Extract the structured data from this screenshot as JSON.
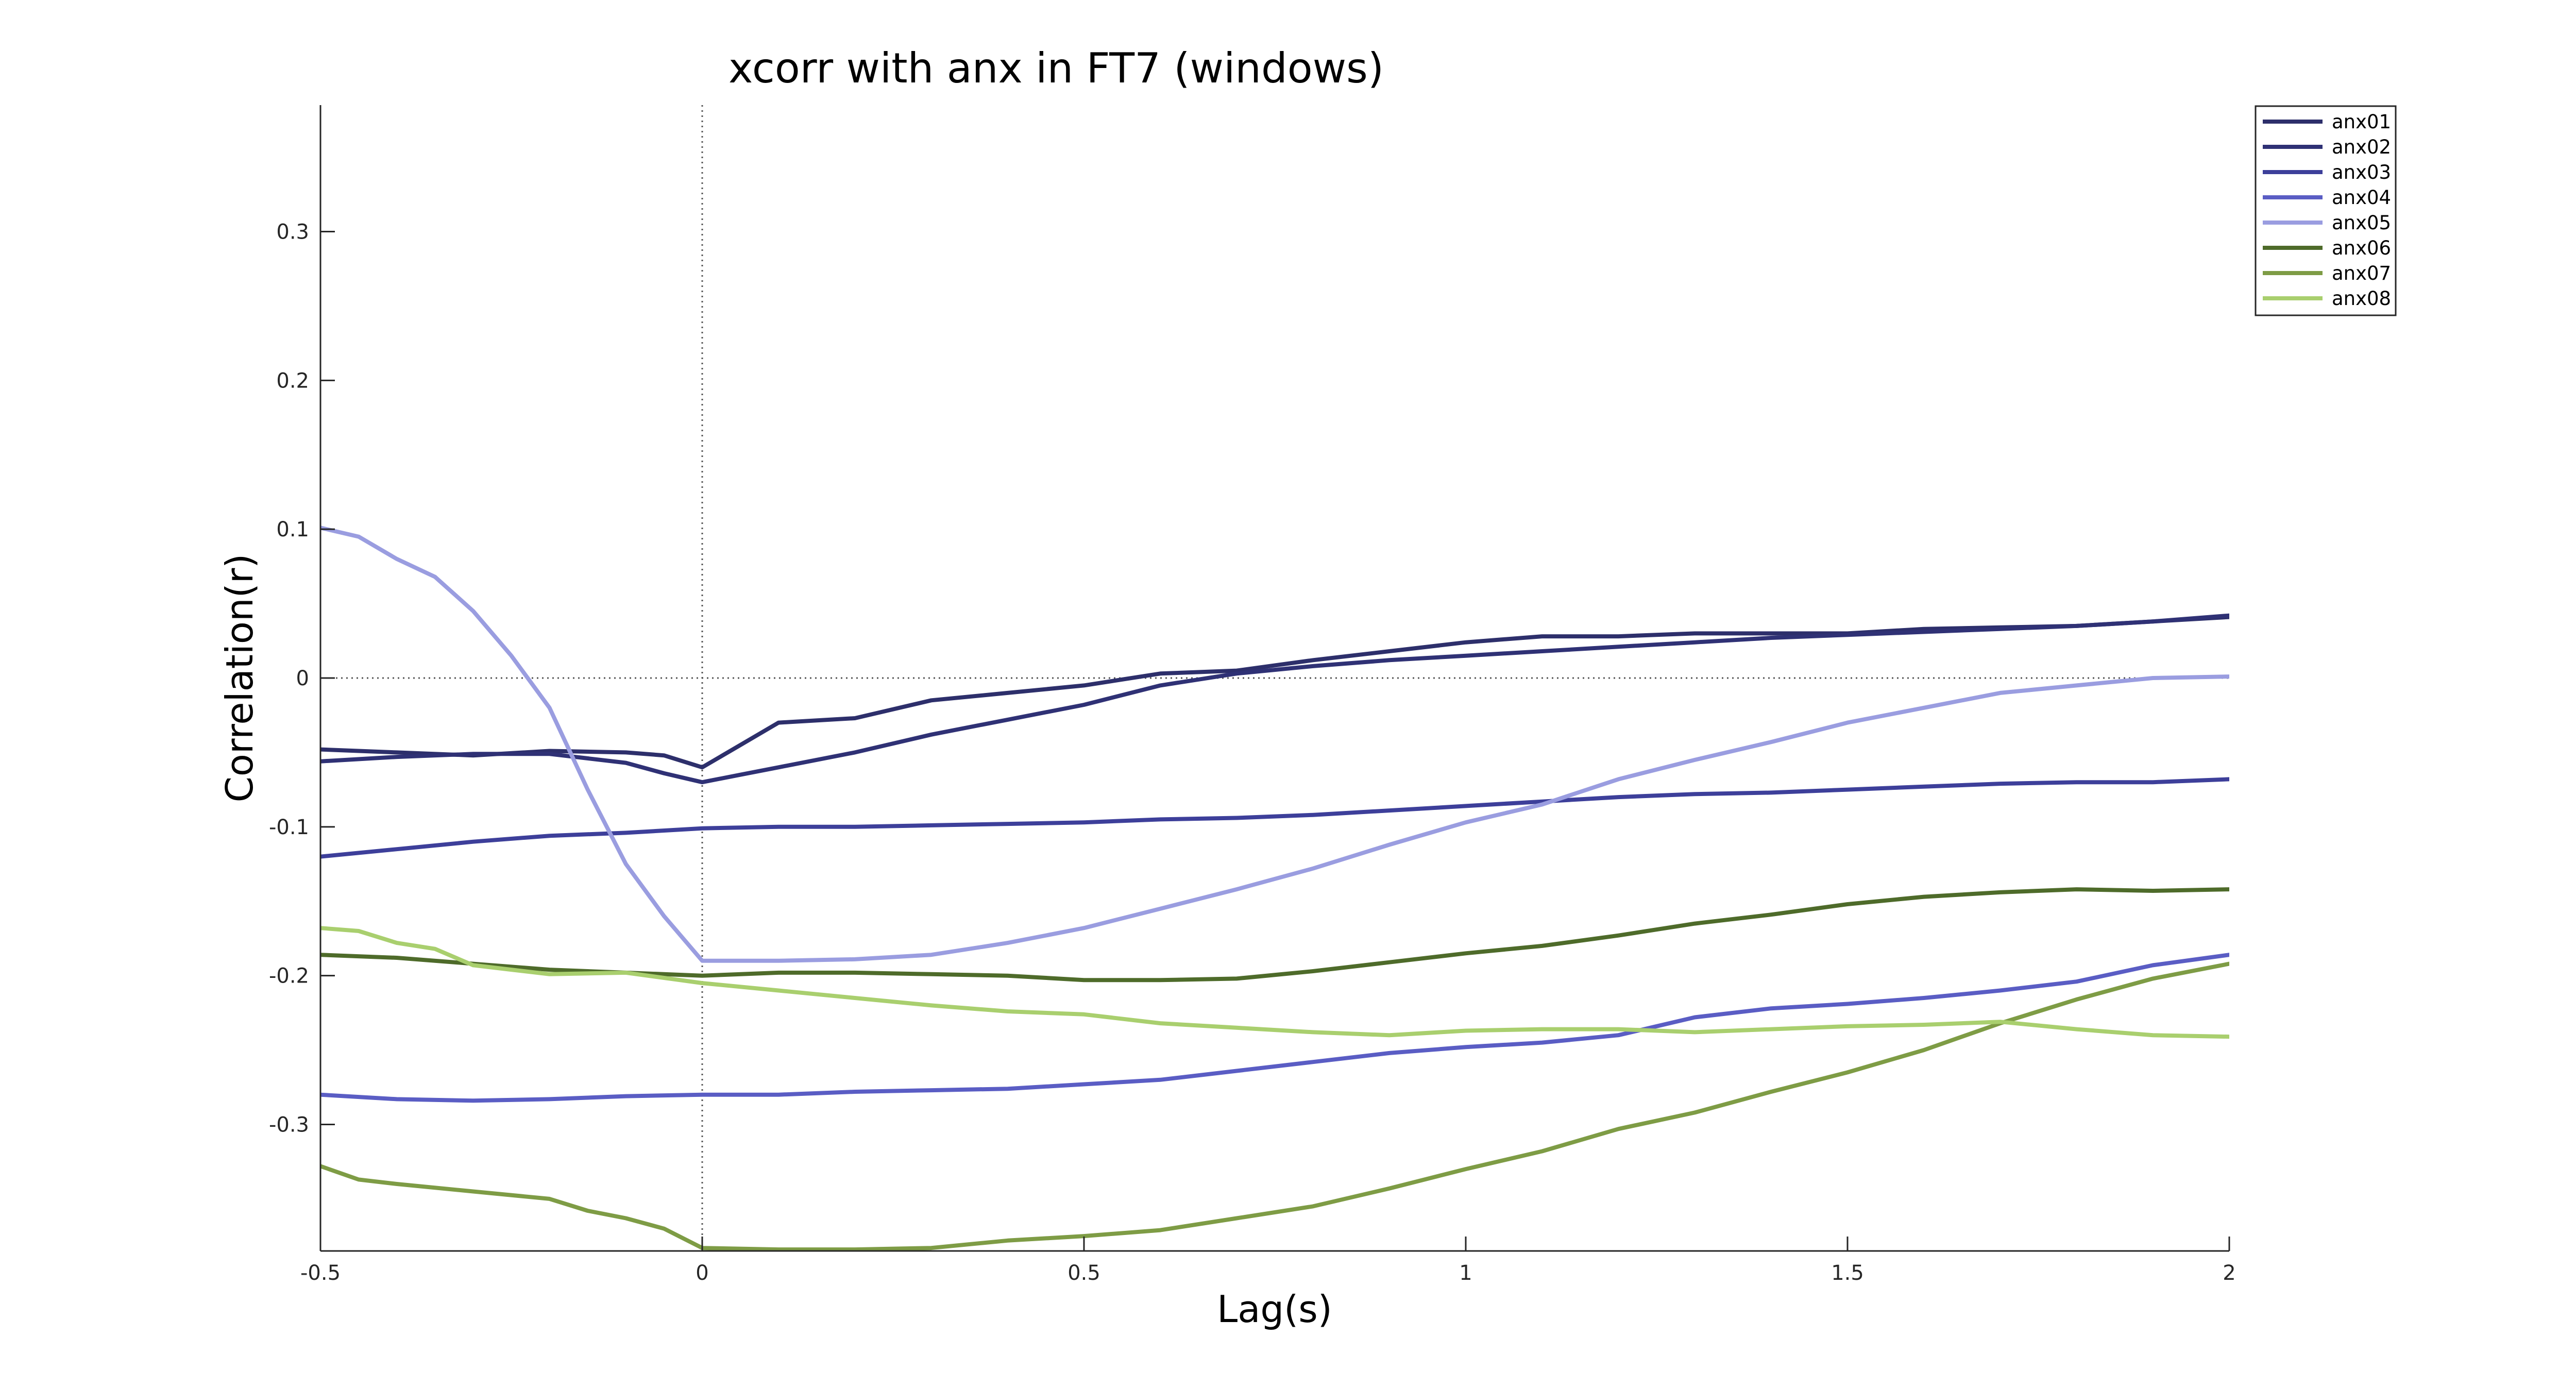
{
  "chart_data": {
    "type": "line",
    "title": "xcorr with anx in FT7 (windows)",
    "xlabel": "Lag(s)",
    "ylabel": "Correlation(r)",
    "xlim": [
      -0.5,
      2
    ],
    "ylim": [
      -0.385,
      0.385
    ],
    "xticks": [
      -0.5,
      0,
      0.5,
      1,
      1.5,
      2
    ],
    "xtick_labels": [
      "-0.5",
      "0",
      "0.5",
      "1",
      "1.5",
      "2"
    ],
    "yticks": [
      -0.3,
      -0.2,
      -0.1,
      0,
      0.1,
      0.2,
      0.3
    ],
    "ytick_labels": [
      "-0.3",
      "-0.2",
      "-0.1",
      "0",
      "0.1",
      "0.2",
      "0.3"
    ],
    "reference_lines": {
      "x": 0,
      "y": 0
    },
    "grid": false,
    "legend_position": "top-right",
    "series": [
      {
        "name": "anx01",
        "color": "#2d2f6b",
        "x": [
          -0.5,
          -0.4,
          -0.3,
          -0.2,
          -0.1,
          -0.05,
          0,
          0.05,
          0.1,
          0.2,
          0.3,
          0.4,
          0.5,
          0.6,
          0.7,
          0.8,
          0.9,
          1.0,
          1.1,
          1.2,
          1.3,
          1.4,
          1.5,
          1.6,
          1.7,
          1.8,
          1.9,
          2.0
        ],
        "y": [
          -0.048,
          -0.05,
          -0.052,
          -0.049,
          -0.05,
          -0.052,
          -0.06,
          -0.045,
          -0.03,
          -0.027,
          -0.015,
          -0.01,
          -0.005,
          0.003,
          0.005,
          0.012,
          0.018,
          0.024,
          0.028,
          0.028,
          0.03,
          0.03,
          0.03,
          0.033,
          0.034,
          0.035,
          0.038,
          0.041
        ]
      },
      {
        "name": "anx02",
        "color": "#2f3175",
        "x": [
          -0.5,
          -0.4,
          -0.3,
          -0.2,
          -0.1,
          -0.05,
          0,
          0.05,
          0.1,
          0.2,
          0.3,
          0.4,
          0.5,
          0.6,
          0.7,
          0.8,
          0.9,
          1.0,
          1.1,
          1.2,
          1.3,
          1.4,
          1.5,
          1.6,
          1.7,
          1.8,
          1.9,
          2.0
        ],
        "y": [
          -0.056,
          -0.053,
          -0.051,
          -0.051,
          -0.057,
          -0.064,
          -0.07,
          -0.065,
          -0.06,
          -0.05,
          -0.038,
          -0.028,
          -0.018,
          -0.005,
          0.003,
          0.008,
          0.012,
          0.015,
          0.018,
          0.021,
          0.024,
          0.027,
          0.029,
          0.031,
          0.033,
          0.035,
          0.038,
          0.042
        ]
      },
      {
        "name": "anx03",
        "color": "#3d3f9a",
        "x": [
          -0.5,
          -0.4,
          -0.3,
          -0.2,
          -0.1,
          0,
          0.1,
          0.2,
          0.3,
          0.4,
          0.5,
          0.6,
          0.7,
          0.8,
          0.9,
          1.0,
          1.1,
          1.2,
          1.3,
          1.4,
          1.5,
          1.6,
          1.7,
          1.8,
          1.9,
          2.0
        ],
        "y": [
          -0.12,
          -0.115,
          -0.11,
          -0.106,
          -0.104,
          -0.101,
          -0.1,
          -0.1,
          -0.099,
          -0.098,
          -0.097,
          -0.095,
          -0.094,
          -0.092,
          -0.089,
          -0.086,
          -0.083,
          -0.08,
          -0.078,
          -0.077,
          -0.075,
          -0.073,
          -0.071,
          -0.07,
          -0.07,
          -0.068
        ]
      },
      {
        "name": "anx04",
        "color": "#5a5dc4",
        "x": [
          -0.5,
          -0.4,
          -0.3,
          -0.2,
          -0.1,
          0,
          0.1,
          0.2,
          0.3,
          0.4,
          0.5,
          0.6,
          0.7,
          0.8,
          0.9,
          1.0,
          1.1,
          1.2,
          1.3,
          1.4,
          1.5,
          1.6,
          1.7,
          1.8,
          1.9,
          2.0
        ],
        "y": [
          -0.28,
          -0.283,
          -0.284,
          -0.283,
          -0.281,
          -0.28,
          -0.28,
          -0.278,
          -0.277,
          -0.276,
          -0.273,
          -0.27,
          -0.264,
          -0.258,
          -0.252,
          -0.248,
          -0.245,
          -0.24,
          -0.228,
          -0.222,
          -0.219,
          -0.215,
          -0.21,
          -0.204,
          -0.193,
          -0.186
        ]
      },
      {
        "name": "anx05",
        "color": "#9a9de0",
        "x": [
          -0.5,
          -0.45,
          -0.4,
          -0.35,
          -0.3,
          -0.25,
          -0.2,
          -0.15,
          -0.1,
          -0.05,
          0,
          0.1,
          0.2,
          0.3,
          0.4,
          0.5,
          0.6,
          0.7,
          0.8,
          0.9,
          1.0,
          1.1,
          1.2,
          1.3,
          1.4,
          1.5,
          1.6,
          1.7,
          1.8,
          1.9,
          2.0
        ],
        "y": [
          0.101,
          0.095,
          0.08,
          0.068,
          0.045,
          0.015,
          -0.02,
          -0.075,
          -0.125,
          -0.16,
          -0.19,
          -0.19,
          -0.189,
          -0.186,
          -0.178,
          -0.168,
          -0.155,
          -0.142,
          -0.128,
          -0.112,
          -0.097,
          -0.085,
          -0.068,
          -0.055,
          -0.043,
          -0.03,
          -0.02,
          -0.01,
          -0.005,
          0.0,
          0.001
        ]
      },
      {
        "name": "anx06",
        "color": "#4e6b2a",
        "x": [
          -0.5,
          -0.4,
          -0.3,
          -0.2,
          -0.1,
          0,
          0.1,
          0.2,
          0.3,
          0.4,
          0.5,
          0.6,
          0.7,
          0.8,
          0.9,
          1.0,
          1.1,
          1.2,
          1.3,
          1.4,
          1.5,
          1.6,
          1.7,
          1.8,
          1.9,
          2.0
        ],
        "y": [
          -0.186,
          -0.188,
          -0.192,
          -0.196,
          -0.198,
          -0.2,
          -0.198,
          -0.198,
          -0.199,
          -0.2,
          -0.203,
          -0.203,
          -0.202,
          -0.197,
          -0.191,
          -0.185,
          -0.18,
          -0.173,
          -0.165,
          -0.159,
          -0.152,
          -0.147,
          -0.144,
          -0.142,
          -0.143,
          -0.142
        ]
      },
      {
        "name": "anx07",
        "color": "#7e9c45",
        "x": [
          -0.5,
          -0.45,
          -0.4,
          -0.3,
          -0.2,
          -0.15,
          -0.1,
          -0.05,
          0,
          0.1,
          0.2,
          0.3,
          0.4,
          0.5,
          0.6,
          0.7,
          0.8,
          0.9,
          1.0,
          1.1,
          1.2,
          1.3,
          1.4,
          1.5,
          1.6,
          1.7,
          1.8,
          1.9,
          2.0
        ],
        "y": [
          -0.328,
          -0.337,
          -0.34,
          -0.345,
          -0.35,
          -0.358,
          -0.363,
          -0.37,
          -0.383,
          -0.384,
          -0.384,
          -0.383,
          -0.378,
          -0.375,
          -0.371,
          -0.363,
          -0.355,
          -0.343,
          -0.33,
          -0.318,
          -0.303,
          -0.292,
          -0.278,
          -0.265,
          -0.25,
          -0.232,
          -0.216,
          -0.202,
          -0.192
        ]
      },
      {
        "name": "anx08",
        "color": "#a9cf6e",
        "x": [
          -0.5,
          -0.45,
          -0.4,
          -0.35,
          -0.3,
          -0.25,
          -0.2,
          -0.1,
          0,
          0.1,
          0.2,
          0.3,
          0.4,
          0.5,
          0.6,
          0.7,
          0.8,
          0.9,
          1.0,
          1.1,
          1.2,
          1.3,
          1.4,
          1.5,
          1.6,
          1.7,
          1.8,
          1.9,
          2.0
        ],
        "y": [
          -0.168,
          -0.17,
          -0.178,
          -0.182,
          -0.193,
          -0.196,
          -0.199,
          -0.198,
          -0.205,
          -0.21,
          -0.215,
          -0.22,
          -0.224,
          -0.226,
          -0.232,
          -0.235,
          -0.238,
          -0.24,
          -0.237,
          -0.236,
          -0.236,
          -0.238,
          -0.236,
          -0.234,
          -0.233,
          -0.231,
          -0.236,
          -0.24,
          -0.241
        ]
      }
    ]
  }
}
